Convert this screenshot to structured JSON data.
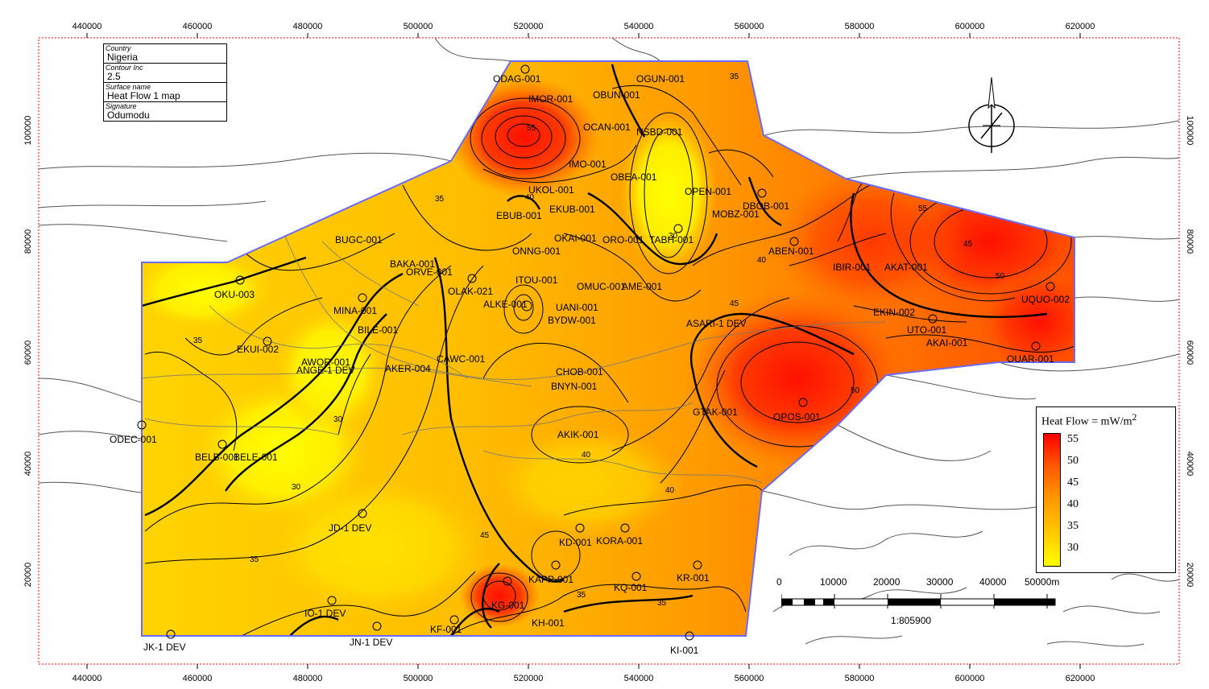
{
  "map": {
    "x_ticks": [
      "440000",
      "460000",
      "480000",
      "500000",
      "520000",
      "540000",
      "560000",
      "580000",
      "600000",
      "620000"
    ],
    "y_ticks": [
      "100000",
      "80000",
      "60000",
      "40000",
      "20000"
    ],
    "info_box": [
      {
        "key": "Country",
        "value": "Nigeria"
      },
      {
        "key": "Contour Inc",
        "value": "2.5"
      },
      {
        "key": "Surface name",
        "value": "Heat Flow 1 map"
      },
      {
        "key": "Signature",
        "value": "Odumodu"
      }
    ],
    "legend": {
      "title": "Heat Flow = mW/m",
      "superscript": "2",
      "levels": [
        "55",
        "50",
        "45",
        "40",
        "35",
        "30"
      ],
      "colors": [
        "#ff0000",
        "#ff5a00",
        "#ff9a00",
        "#ffc800",
        "#ffff00"
      ]
    },
    "scale_bar": {
      "labels": [
        "0",
        "10000",
        "20000",
        "30000",
        "40000",
        "50000m"
      ],
      "ratio": "1:805900"
    },
    "contour_labels": [
      "55",
      "50",
      "45",
      "40",
      "35",
      "30"
    ],
    "wells": [
      "ODAG-001",
      "IMOR-001",
      "OBUN-001",
      "OGUN-001",
      "OCAN-001",
      "NSBD-001",
      "IMO-001",
      "OBEA-001",
      "OPEN-001",
      "DBOB-001",
      "MOBZ-001",
      "UKOL-001",
      "EKUB-001",
      "EBUB-001",
      "BUGC-001",
      "OKAI-001",
      "ONNG-001",
      "ORO-001",
      "TABH-001",
      "BAKA-001",
      "ORVE-001",
      "ABEN-001",
      "IBIR-001",
      "AKAT-001",
      "OKU-003",
      "OLAK-021",
      "ITOU-001",
      "OMUC-001",
      "AME-001",
      "MINA-001",
      "ALKE-001",
      "UANI-001",
      "BYDW-001",
      "UQUO-002",
      "EKIN-002",
      "ASARI-1 DEV",
      "UTO-001",
      "AKAI-001",
      "OUAR-001",
      "EKUI-002",
      "BILE-001",
      "AWOR-001",
      "ANGE-1 DEV",
      "AKER-004",
      "CAWC-001",
      "CHOB-001",
      "BNYN-001",
      "GTAK-001",
      "OPOS-001",
      "ODEC-001",
      "AKIK-001",
      "BELB-001",
      "BELE-001",
      "JD-1 DEV",
      "KD-001",
      "KORA-001",
      "KAPP-001",
      "KQ-001",
      "KR-001",
      "KG-001",
      "KF-001",
      "KH-001",
      "IO-1 DEV",
      "JN-1 DEV",
      "JK-1 DEV",
      "KI-001"
    ]
  }
}
